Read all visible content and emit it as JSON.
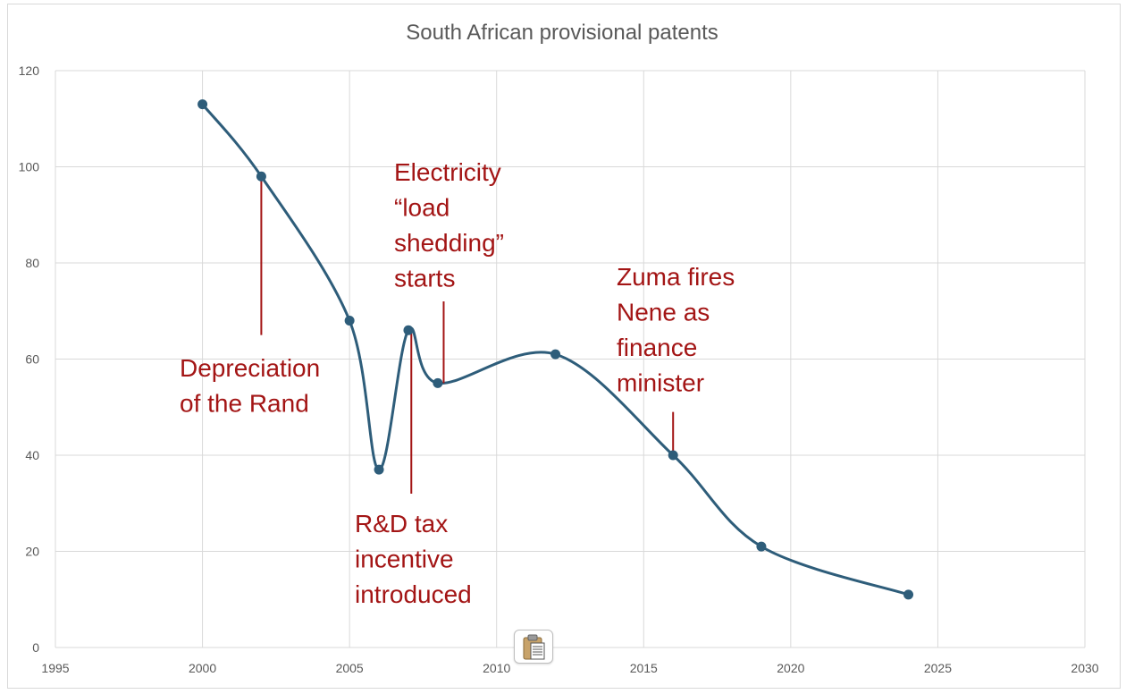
{
  "chart_data": {
    "type": "scatter",
    "title": "South African provisional patents",
    "xlabel": "",
    "ylabel": "",
    "xlim": [
      1995,
      2030
    ],
    "ylim": [
      0,
      120
    ],
    "x_ticks": [
      "1995",
      "2000",
      "2005",
      "2010",
      "2015",
      "2020",
      "2025",
      "2030"
    ],
    "y_ticks": [
      "0",
      "20",
      "40",
      "60",
      "80",
      "100",
      "120"
    ],
    "grid": true,
    "smoothed_line": true,
    "series_color": "#2e5d7a",
    "annotation_color": "#a31515",
    "series": [
      {
        "x": [
          2000,
          2002,
          2005,
          2006,
          2007,
          2008,
          2012,
          2016,
          2019,
          2024
        ],
        "y": [
          113,
          98,
          68,
          37,
          66,
          55,
          61,
          40,
          21,
          11
        ]
      }
    ],
    "annotations": [
      {
        "lines": [
          "Depreciation",
          "of the Rand"
        ],
        "x": 2002,
        "line_y": [
          98,
          65
        ]
      },
      {
        "lines": [
          "Electricity",
          "“load",
          "shedding”",
          "starts"
        ],
        "x": 2008.2,
        "line_y": [
          55,
          72
        ]
      },
      {
        "lines": [
          "R&D tax",
          "incentive",
          "introduced"
        ],
        "x": 2007.1,
        "line_y": [
          66,
          32
        ]
      },
      {
        "lines": [
          "Zuma fires",
          "Nene as",
          "finance",
          "minister"
        ],
        "x": 2016,
        "line_y": [
          40,
          49
        ]
      }
    ]
  },
  "ui": {
    "paste_icon": "clipboard-icon"
  }
}
